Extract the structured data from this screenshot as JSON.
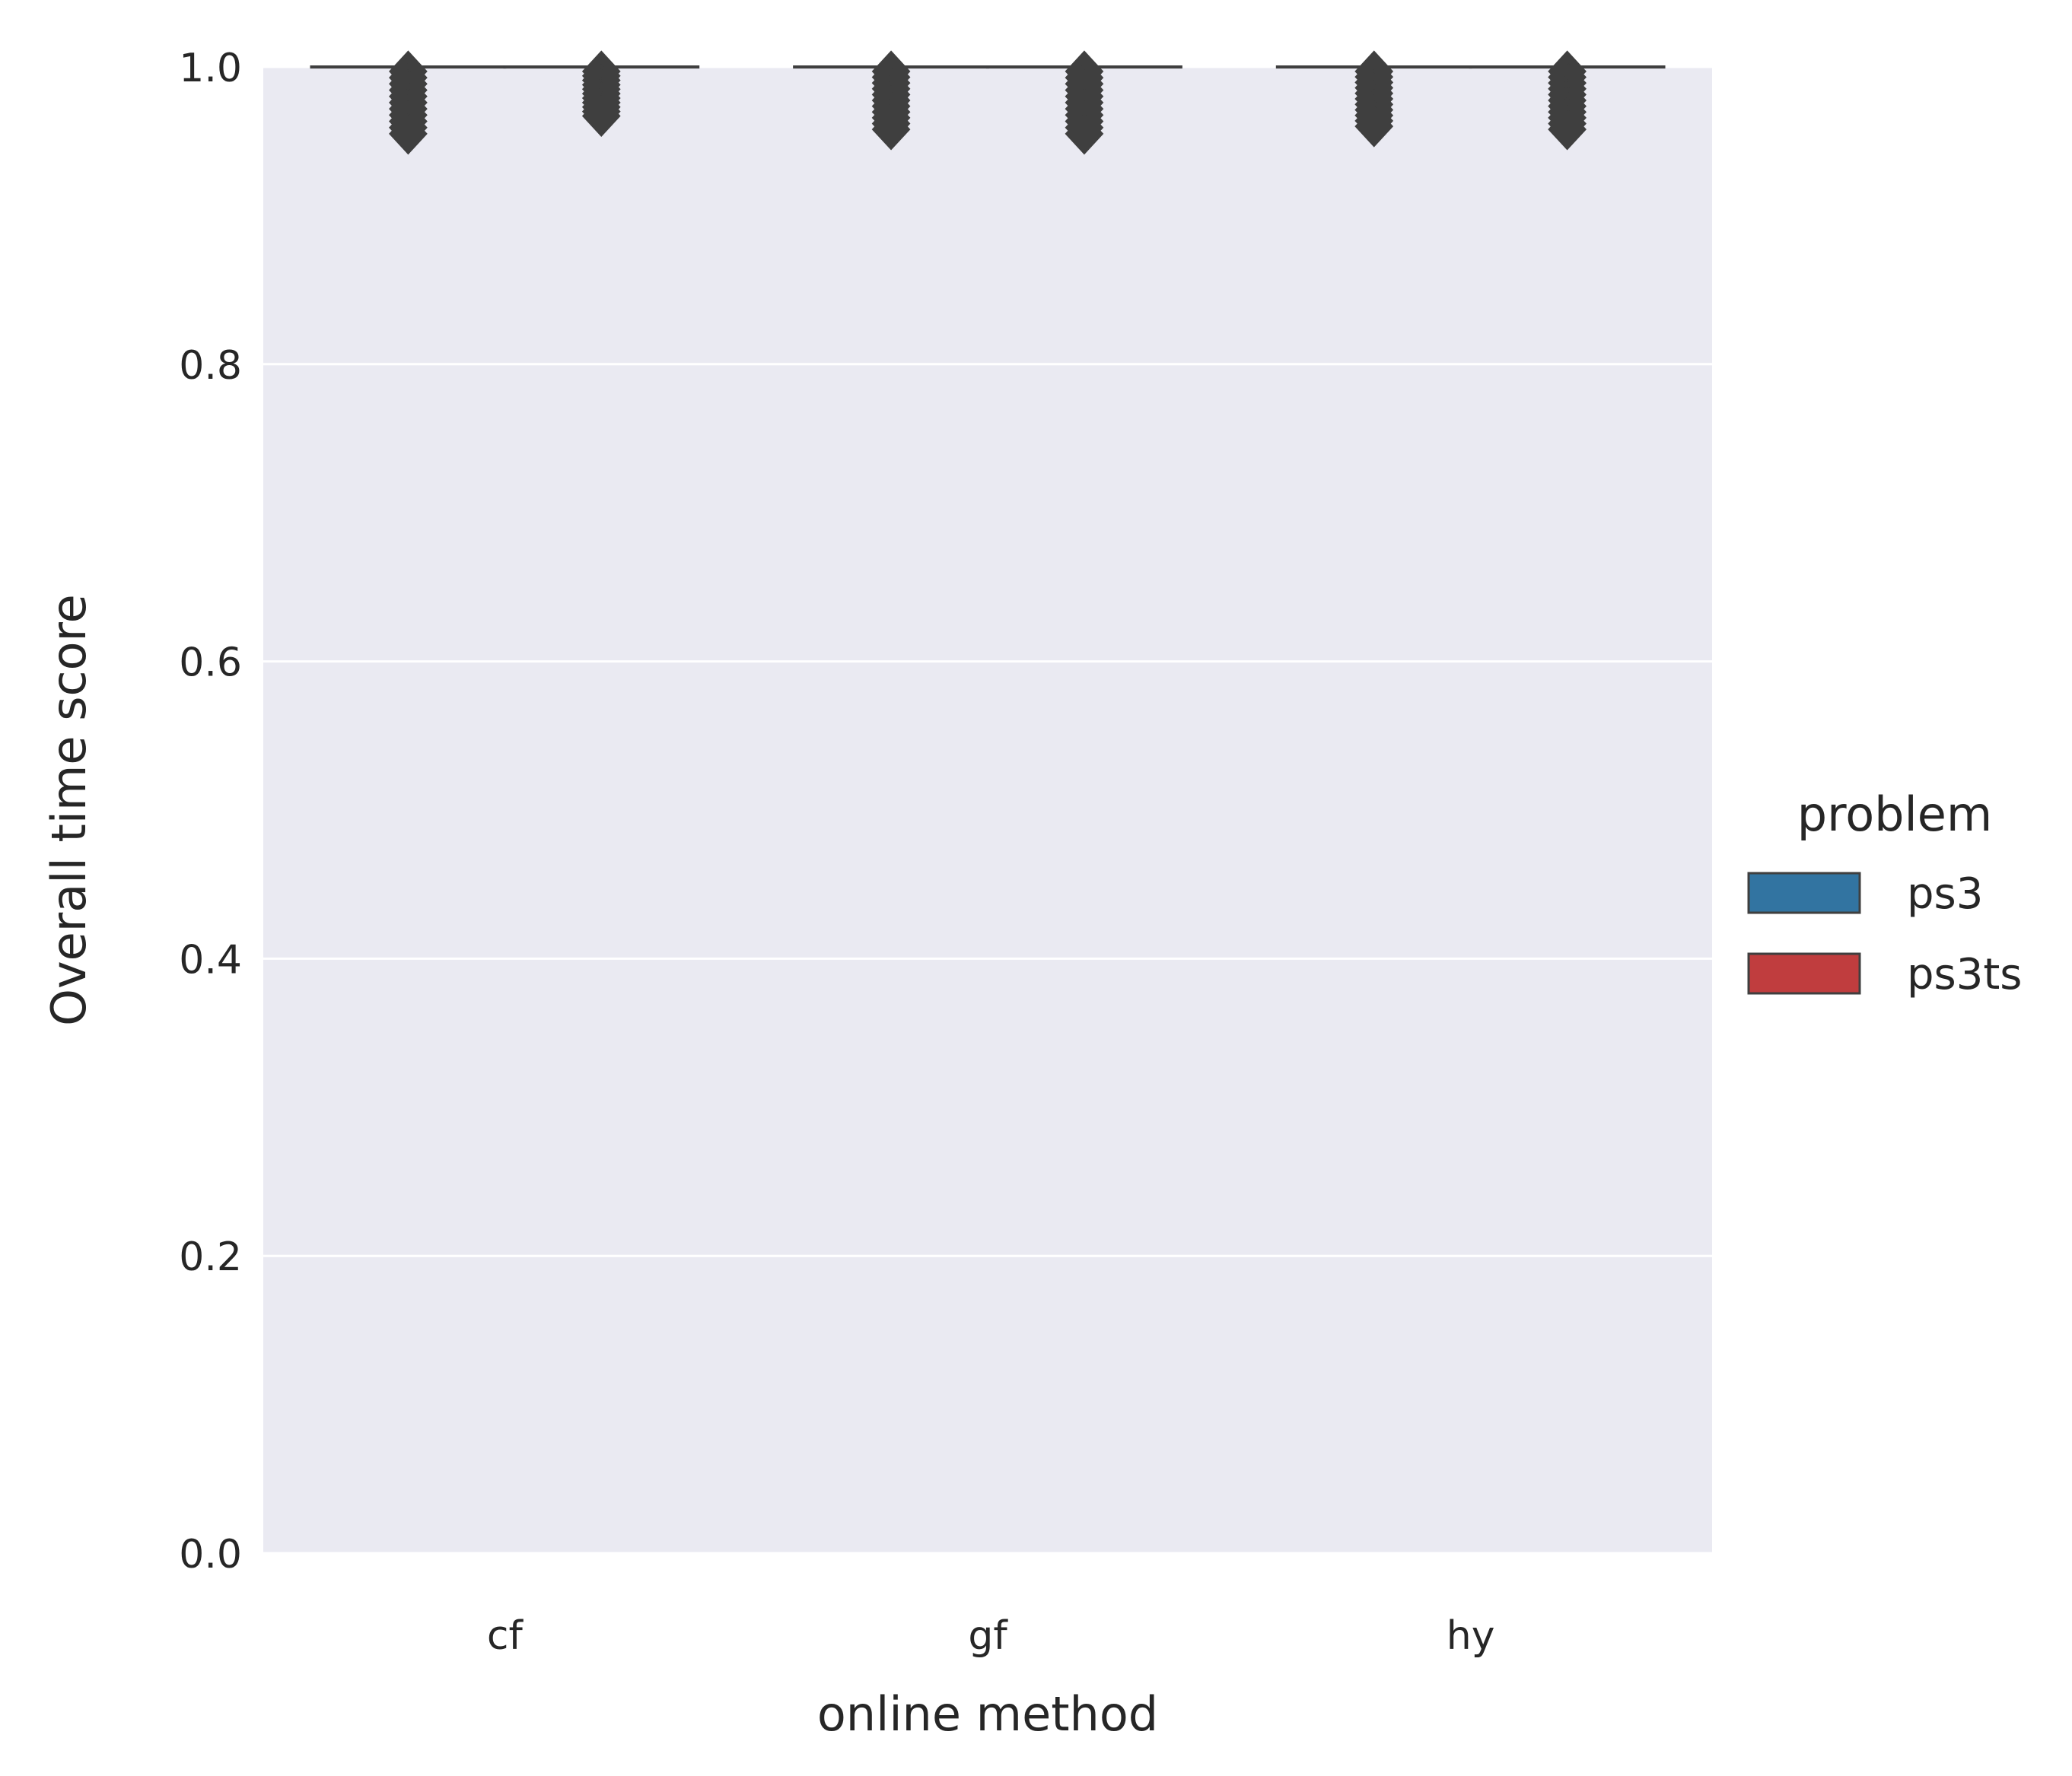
{
  "chart_data": {
    "type": "boxplot",
    "categories": [
      "cf",
      "gf",
      "hy"
    ],
    "xlabel": "online method",
    "ylabel": "Overall time score",
    "ylim": [
      0.0,
      1.0
    ],
    "yticks": [
      "0.0",
      "0.2",
      "0.4",
      "0.6",
      "0.8",
      "1.0"
    ],
    "grid": true,
    "legend": {
      "title": "problem",
      "placement": "right"
    },
    "series": [
      {
        "name": "ps3",
        "color": "#3274a1",
        "boxes": [
          {
            "median": 1.0,
            "q1": 1.0,
            "q3": 1.0,
            "whisker_low": 1.0,
            "whisker_high": 1.0,
            "min_outlier": 0.955
          },
          {
            "median": 1.0,
            "q1": 1.0,
            "q3": 1.0,
            "whisker_low": 1.0,
            "whisker_high": 1.0,
            "min_outlier": 0.958
          },
          {
            "median": 1.0,
            "q1": 1.0,
            "q3": 1.0,
            "whisker_low": 1.0,
            "whisker_high": 1.0,
            "min_outlier": 0.96
          }
        ]
      },
      {
        "name": "ps3ts",
        "color": "#c03d3e",
        "boxes": [
          {
            "median": 1.0,
            "q1": 1.0,
            "q3": 1.0,
            "whisker_low": 1.0,
            "whisker_high": 1.0,
            "min_outlier": 0.967
          },
          {
            "median": 1.0,
            "q1": 1.0,
            "q3": 1.0,
            "whisker_low": 1.0,
            "whisker_high": 1.0,
            "min_outlier": 0.955
          },
          {
            "median": 1.0,
            "q1": 1.0,
            "q3": 1.0,
            "whisker_low": 1.0,
            "whisker_high": 1.0,
            "min_outlier": 0.958
          }
        ]
      }
    ],
    "colors": {
      "background": "#eaeaf2",
      "grid": "#ffffff",
      "edge": "#3f3f3f"
    }
  }
}
